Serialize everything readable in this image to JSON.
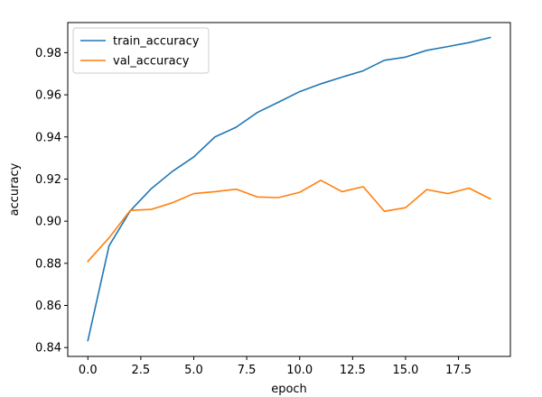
{
  "chart_data": {
    "type": "line",
    "title": "",
    "xlabel": "epoch",
    "ylabel": "accuracy",
    "xlim": [
      -0.95,
      19.95
    ],
    "ylim": [
      0.8358,
      0.9943
    ],
    "xticks": [
      0,
      2.5,
      5,
      7.5,
      10,
      12.5,
      15,
      17.5
    ],
    "xtick_labels": [
      "0.0",
      "2.5",
      "5.0",
      "7.5",
      "10.0",
      "12.5",
      "15.0",
      "17.5"
    ],
    "yticks": [
      0.84,
      0.86,
      0.88,
      0.9,
      0.92,
      0.94,
      0.96,
      0.98
    ],
    "ytick_labels": [
      "0.84",
      "0.86",
      "0.88",
      "0.90",
      "0.92",
      "0.94",
      "0.96",
      "0.98"
    ],
    "grid": false,
    "legend_position": "top-left",
    "x": [
      0,
      1,
      2,
      3,
      4,
      5,
      6,
      7,
      8,
      9,
      10,
      11,
      12,
      13,
      14,
      15,
      16,
      17,
      18,
      19
    ],
    "series": [
      {
        "name": "train_accuracy",
        "color": "#1f77b4",
        "values": [
          0.8433,
          0.8883,
          0.9049,
          0.9155,
          0.9237,
          0.9305,
          0.94,
          0.9446,
          0.9516,
          0.9565,
          0.9615,
          0.9652,
          0.9684,
          0.9714,
          0.9764,
          0.9779,
          0.9811,
          0.9829,
          0.9848,
          0.9872
        ]
      },
      {
        "name": "val_accuracy",
        "color": "#ff7f0e",
        "values": [
          0.8809,
          0.8921,
          0.9051,
          0.9056,
          0.9088,
          0.9131,
          0.914,
          0.9152,
          0.9115,
          0.9112,
          0.9137,
          0.9194,
          0.914,
          0.9164,
          0.9047,
          0.9064,
          0.915,
          0.9131,
          0.9157,
          0.9106
        ]
      }
    ]
  }
}
